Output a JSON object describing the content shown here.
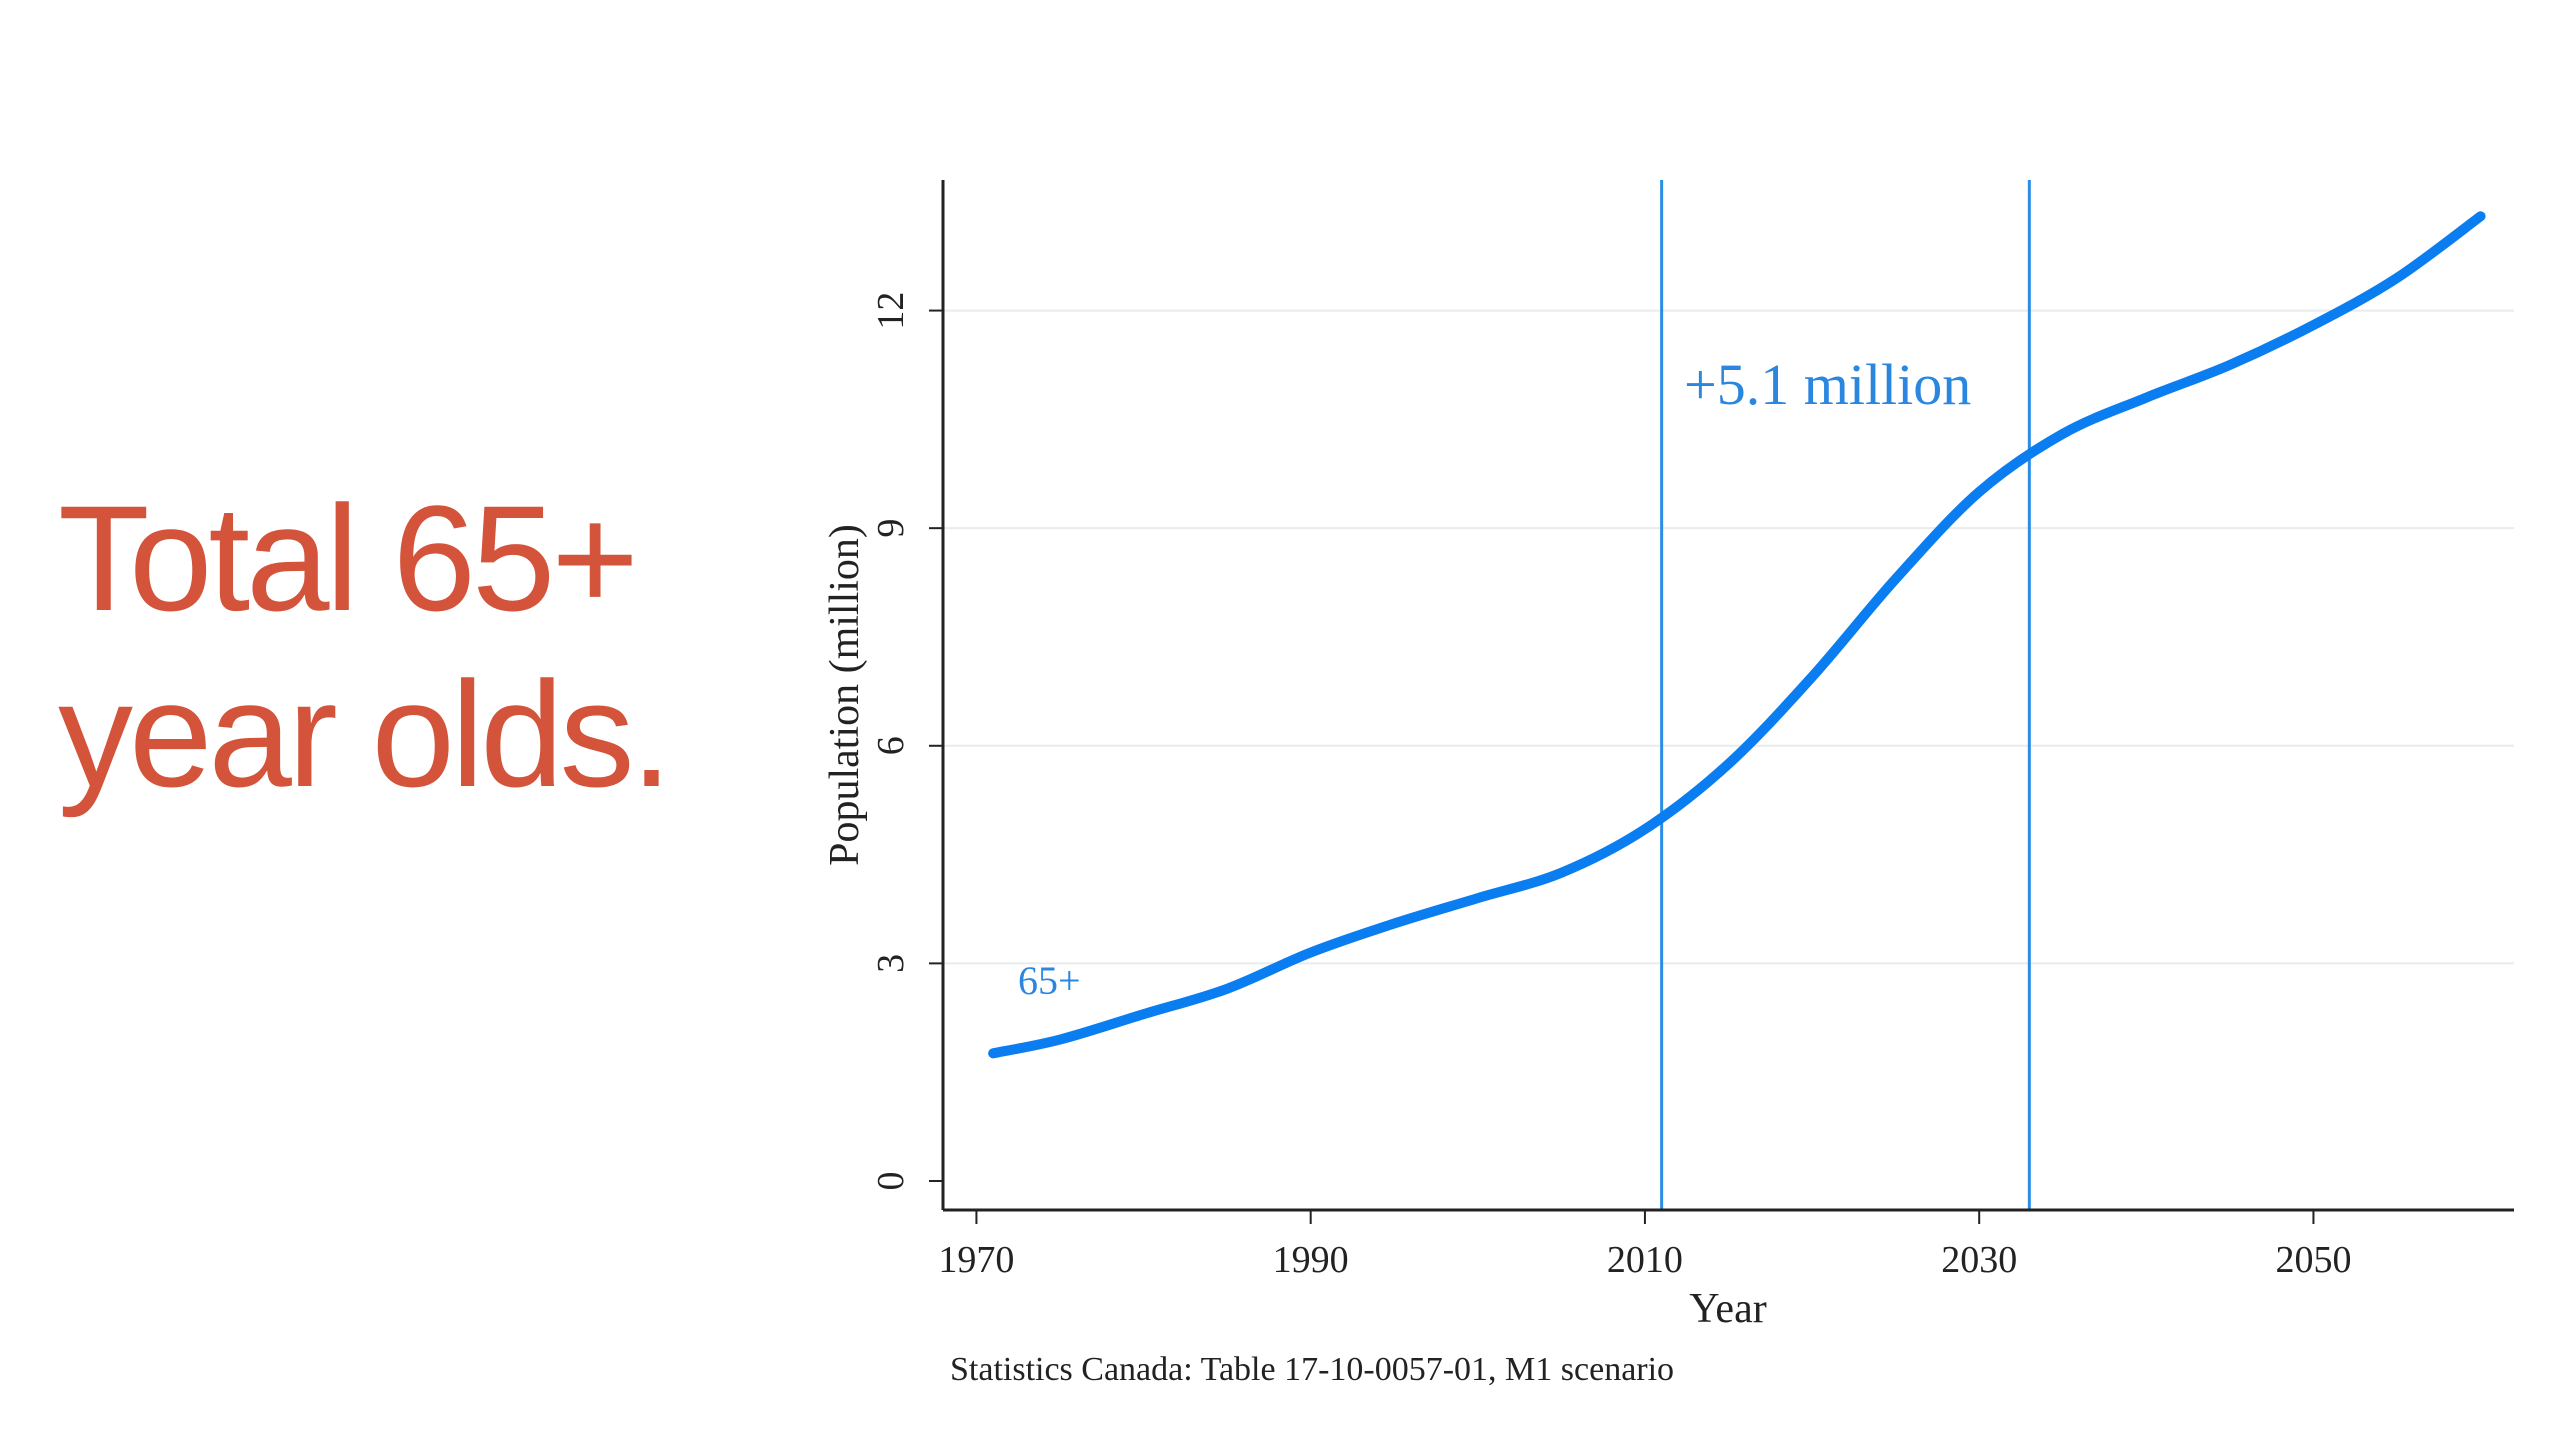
{
  "headline": {
    "line1": "Total 65+",
    "line2": "year olds."
  },
  "colors": {
    "headline": "#d4533b",
    "series": "#0a7df0",
    "reference_lines": "#2b8de3",
    "annotation": "#2b86e0",
    "axis": "#222222",
    "grid": "#e8ecef"
  },
  "chart_data": {
    "type": "line",
    "title": "",
    "xlabel": "Year",
    "ylabel": "Population (million)",
    "xlim": [
      1968,
      2062
    ],
    "ylim": [
      -0.4,
      13.8
    ],
    "xticks": [
      1970,
      1990,
      2010,
      2030,
      2050
    ],
    "yticks": [
      0,
      3,
      6,
      9,
      12
    ],
    "grid": true,
    "series": [
      {
        "name": "65+",
        "x": [
          1971,
          1975,
          1980,
          1985,
          1990,
          1995,
          2000,
          2005,
          2010,
          2015,
          2020,
          2025,
          2030,
          2035,
          2040,
          2045,
          2050,
          2055,
          2060
        ],
        "values": [
          1.76,
          1.95,
          2.3,
          2.65,
          3.15,
          3.55,
          3.9,
          4.25,
          4.85,
          5.75,
          6.95,
          8.3,
          9.5,
          10.3,
          10.8,
          11.25,
          11.8,
          12.45,
          13.3
        ]
      }
    ],
    "reference_lines": [
      2011,
      2033
    ],
    "annotations": {
      "series_label": "65+",
      "difference": "+5.1 million"
    },
    "source": "Statistics Canada: Table 17-10-0057-01, M1 scenario"
  }
}
